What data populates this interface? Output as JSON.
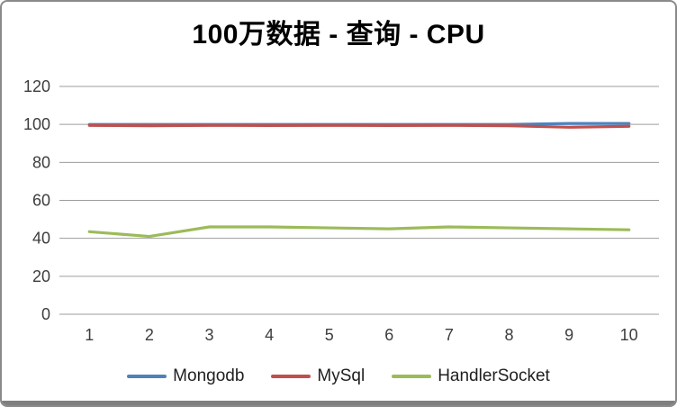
{
  "window": {
    "background": "#ffffff",
    "border_color": "#8a8a8a",
    "bottom_bar_color": "#7f7f7f"
  },
  "chart_data": {
    "type": "line",
    "title": "100万数据 - 查询 - CPU",
    "categories": [
      "1",
      "2",
      "3",
      "4",
      "5",
      "6",
      "7",
      "8",
      "9",
      "10"
    ],
    "series": [
      {
        "name": "Mongodb",
        "color": "#4F81BD",
        "values": [
          100,
          100,
          100,
          100,
          100,
          100,
          100,
          100,
          100.5,
          100.5
        ]
      },
      {
        "name": "MySql",
        "color": "#C0504D",
        "values": [
          99.5,
          99.3,
          99.5,
          99.4,
          99.5,
          99.4,
          99.5,
          99.3,
          98.5,
          99
        ]
      },
      {
        "name": "HandlerSocket",
        "color": "#9BBB59",
        "values": [
          43.5,
          41,
          46,
          46,
          45.5,
          45,
          46,
          45.5,
          45,
          44.5
        ]
      }
    ],
    "xlabel": "",
    "ylabel": "",
    "ylim": [
      0,
      120
    ],
    "yticks": [
      0,
      20,
      40,
      60,
      80,
      100,
      120
    ],
    "grid": true,
    "gridline_color": "#9c9c9c",
    "axis_text_color": "#3d3d3d",
    "axis_font_size": 18,
    "line_width": 3.2,
    "legend_position": "bottom"
  }
}
